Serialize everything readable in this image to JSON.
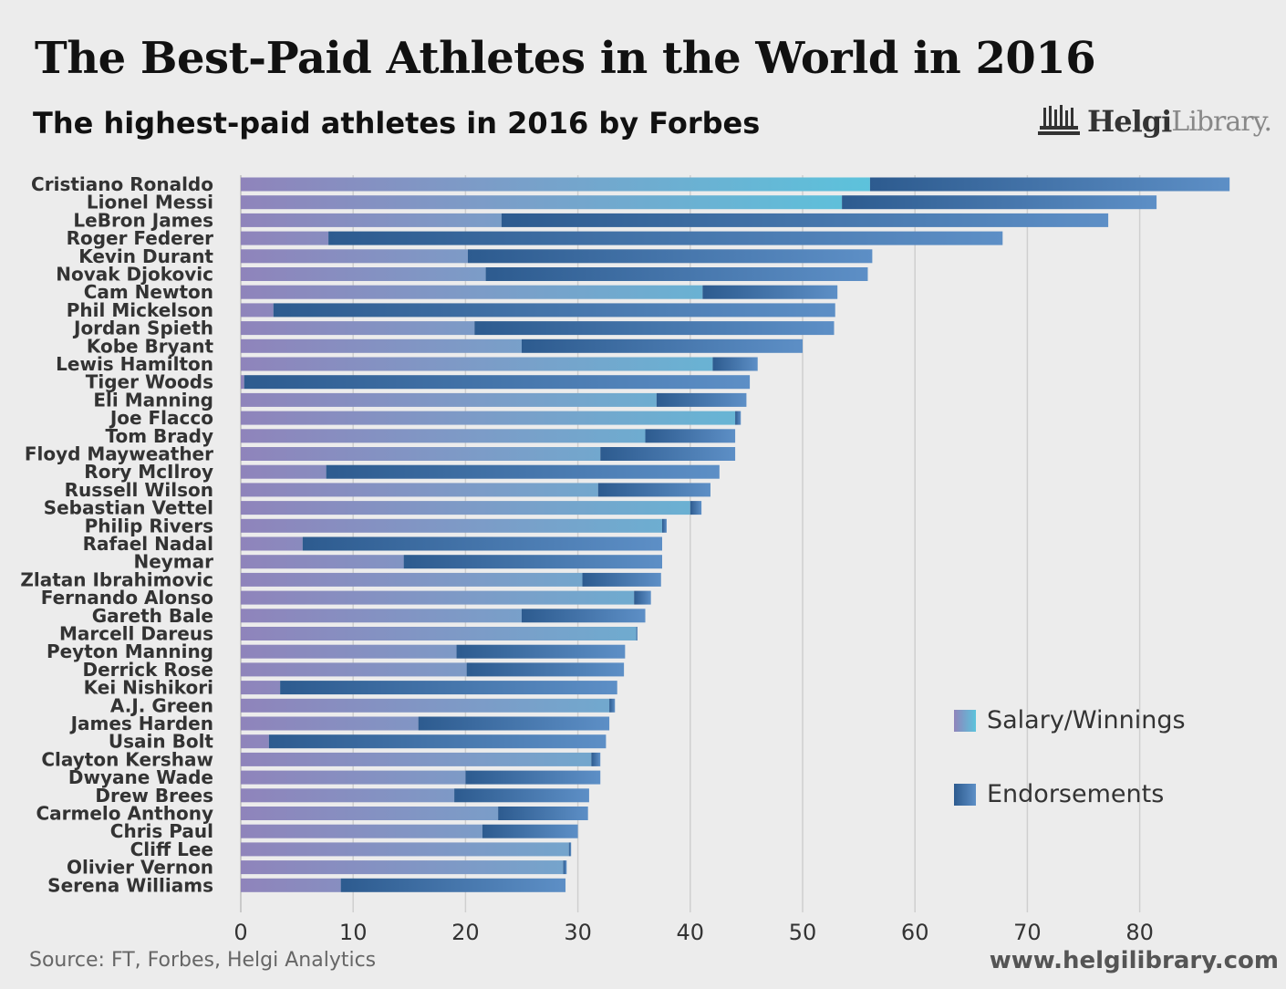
{
  "title": "The Best-Paid Athletes in the World in 2016",
  "subtitle": "The highest-paid athletes in 2016 by Forbes",
  "logo": {
    "main": "Helgi",
    "light": "Library."
  },
  "source": "Source: FT, Forbes, Helgi Analytics",
  "website": "www.helgilibrary.com",
  "legend": {
    "salary": "Salary/Winnings",
    "endorsements": "Endorsements"
  },
  "colors": {
    "salary_start": "#8f84bb",
    "salary_end": "#5cc3dc",
    "endorse_start": "#2d5b8f",
    "endorse_end": "#5d8fc6",
    "background": "#ececec",
    "gridline": "#cfcfcf"
  },
  "chart_data": {
    "type": "bar",
    "orientation": "horizontal",
    "stacked": true,
    "xlim": [
      0,
      88
    ],
    "xticks": [
      0,
      10,
      20,
      30,
      40,
      50,
      60,
      70,
      80
    ],
    "grid": true,
    "legend_position": "right",
    "categories": [
      "Cristiano Ronaldo",
      "Lionel Messi",
      "LeBron James",
      "Roger Federer",
      "Kevin Durant",
      "Novak Djokovic",
      "Cam Newton",
      "Phil Mickelson",
      "Jordan Spieth",
      "Kobe Bryant",
      "Lewis Hamilton",
      "Tiger Woods",
      "Eli Manning",
      "Joe Flacco",
      "Tom Brady",
      "Floyd Mayweather",
      "Rory McIlroy",
      "Russell Wilson",
      "Sebastian Vettel",
      "Philip Rivers",
      "Rafael Nadal",
      "Neymar",
      "Zlatan Ibrahimovic",
      "Fernando Alonso",
      "Gareth Bale",
      "Marcell Dareus",
      "Peyton Manning",
      "Derrick Rose",
      "Kei Nishikori",
      "A.J. Green",
      "James Harden",
      "Usain Bolt",
      "Clayton Kershaw",
      "Dwyane Wade",
      "Drew Brees",
      "Carmelo Anthony",
      "Chris Paul",
      "Cliff Lee",
      "Olivier Vernon",
      "Serena Williams"
    ],
    "series": [
      {
        "name": "Salary/Winnings",
        "values": [
          56,
          53.5,
          23.2,
          7.8,
          20.2,
          21.8,
          41.1,
          2.9,
          20.8,
          25,
          42,
          0.3,
          37,
          44,
          36,
          32,
          7.6,
          31.8,
          40,
          37.5,
          5.5,
          14.5,
          30.4,
          35,
          25,
          35.2,
          19.2,
          20.1,
          3.5,
          32.8,
          15.8,
          2.5,
          31.2,
          20,
          19,
          22.9,
          21.5,
          29.2,
          28.7,
          8.9
        ]
      },
      {
        "name": "Endorsements",
        "values": [
          32,
          28,
          54,
          60,
          36,
          34,
          12,
          50,
          32,
          25,
          4,
          45,
          8,
          0.5,
          8,
          12,
          35,
          10,
          1,
          0.4,
          32,
          23,
          7,
          1.5,
          11,
          0.1,
          15,
          14,
          30,
          0.5,
          17,
          30,
          0.8,
          12,
          12,
          8,
          8.5,
          0.2,
          0.3,
          20
        ]
      }
    ]
  }
}
